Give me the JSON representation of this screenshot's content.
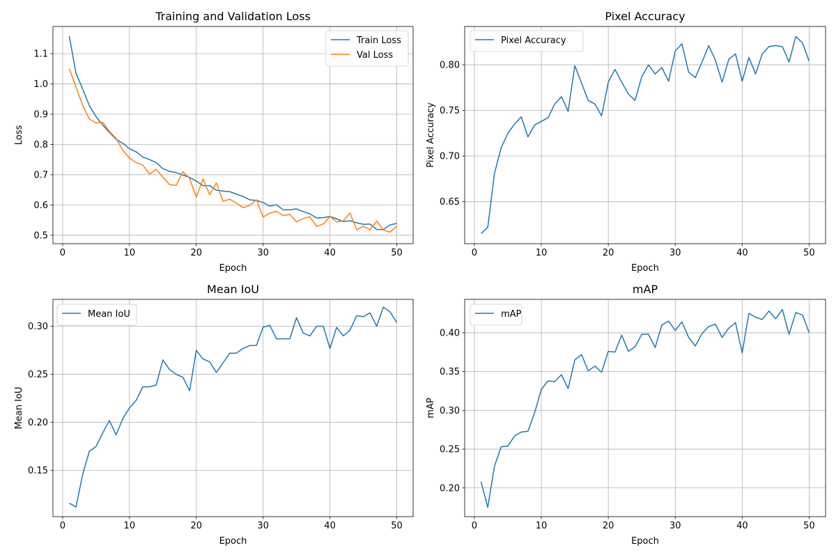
{
  "colors": {
    "train_loss": "#1f77b4",
    "val_loss": "#ff7f0e",
    "metric": "#1f77b4",
    "grid": "#b0b0b0",
    "axis": "#000000"
  },
  "chart_data": [
    {
      "type": "line",
      "title": "Training and Validation Loss",
      "xlabel": "Epoch",
      "ylabel": "Loss",
      "xlim": [
        -1.45,
        52.45
      ],
      "ylim": [
        0.472,
        1.19
      ],
      "xticks": [
        0,
        10,
        20,
        30,
        40,
        50
      ],
      "yticks": [
        0.5,
        0.6,
        0.7,
        0.8,
        0.9,
        1.0,
        1.1
      ],
      "ytick_labels": [
        "0.5",
        "0.6",
        "0.7",
        "0.8",
        "0.9",
        "1.0",
        "1.1"
      ],
      "grid": true,
      "legend": "top-right",
      "x": [
        1,
        2,
        3,
        4,
        5,
        6,
        7,
        8,
        9,
        10,
        11,
        12,
        13,
        14,
        15,
        16,
        17,
        18,
        19,
        20,
        21,
        22,
        23,
        24,
        25,
        26,
        27,
        28,
        29,
        30,
        31,
        32,
        33,
        34,
        35,
        36,
        37,
        38,
        39,
        40,
        41,
        42,
        43,
        44,
        45,
        46,
        47,
        48,
        49,
        50
      ],
      "series": [
        {
          "name": "Train Loss",
          "values": [
            1.158,
            1.035,
            0.983,
            0.928,
            0.892,
            0.864,
            0.84,
            0.817,
            0.804,
            0.786,
            0.776,
            0.758,
            0.75,
            0.74,
            0.72,
            0.711,
            0.707,
            0.699,
            0.691,
            0.679,
            0.664,
            0.664,
            0.649,
            0.646,
            0.644,
            0.636,
            0.628,
            0.617,
            0.615,
            0.608,
            0.596,
            0.601,
            0.584,
            0.584,
            0.587,
            0.578,
            0.571,
            0.557,
            0.558,
            0.562,
            0.554,
            0.545,
            0.548,
            0.541,
            0.536,
            0.537,
            0.519,
            0.519,
            0.534,
            0.539
          ]
        },
        {
          "name": "Val Loss",
          "values": [
            1.05,
            0.99,
            0.929,
            0.884,
            0.871,
            0.873,
            0.843,
            0.82,
            0.781,
            0.755,
            0.74,
            0.732,
            0.702,
            0.718,
            0.692,
            0.667,
            0.665,
            0.71,
            0.688,
            0.626,
            0.686,
            0.634,
            0.673,
            0.612,
            0.619,
            0.606,
            0.591,
            0.599,
            0.617,
            0.56,
            0.573,
            0.579,
            0.565,
            0.569,
            0.544,
            0.555,
            0.561,
            0.529,
            0.537,
            0.562,
            0.544,
            0.547,
            0.574,
            0.518,
            0.53,
            0.518,
            0.547,
            0.517,
            0.51,
            0.53
          ]
        }
      ]
    },
    {
      "type": "line",
      "title": "Pixel Accuracy",
      "xlabel": "Epoch",
      "ylabel": "Pixel Accuracy",
      "xlim": [
        -1.45,
        52.45
      ],
      "ylim": [
        0.604,
        0.842
      ],
      "xticks": [
        0,
        10,
        20,
        30,
        40,
        50
      ],
      "yticks": [
        0.65,
        0.7,
        0.75,
        0.8
      ],
      "ytick_labels": [
        "0.65",
        "0.70",
        "0.75",
        "0.80"
      ],
      "grid": true,
      "legend": "top-left",
      "x": [
        1,
        2,
        3,
        4,
        5,
        6,
        7,
        8,
        9,
        10,
        11,
        12,
        13,
        14,
        15,
        16,
        17,
        18,
        19,
        20,
        21,
        22,
        23,
        24,
        25,
        26,
        27,
        28,
        29,
        30,
        31,
        32,
        33,
        34,
        35,
        36,
        37,
        38,
        39,
        40,
        41,
        42,
        43,
        44,
        45,
        46,
        47,
        48,
        49,
        50
      ],
      "series": [
        {
          "name": "Pixel Accuracy",
          "values": [
            0.615,
            0.622,
            0.681,
            0.709,
            0.725,
            0.735,
            0.743,
            0.721,
            0.734,
            0.738,
            0.742,
            0.757,
            0.765,
            0.749,
            0.799,
            0.78,
            0.761,
            0.757,
            0.744,
            0.781,
            0.795,
            0.781,
            0.768,
            0.761,
            0.787,
            0.8,
            0.79,
            0.797,
            0.782,
            0.815,
            0.823,
            0.792,
            0.786,
            0.803,
            0.821,
            0.805,
            0.781,
            0.806,
            0.812,
            0.782,
            0.808,
            0.79,
            0.812,
            0.82,
            0.821,
            0.82,
            0.803,
            0.831,
            0.824,
            0.804
          ]
        }
      ]
    },
    {
      "type": "line",
      "title": "Mean IoU",
      "xlabel": "Epoch",
      "ylabel": "Mean IoU",
      "xlim": [
        -1.45,
        52.45
      ],
      "ylim": [
        0.102,
        0.328
      ],
      "xticks": [
        0,
        10,
        20,
        30,
        40,
        50
      ],
      "yticks": [
        0.15,
        0.2,
        0.25,
        0.3
      ],
      "ytick_labels": [
        "0.15",
        "0.20",
        "0.25",
        "0.30"
      ],
      "grid": true,
      "legend": "top-left",
      "x": [
        1,
        2,
        3,
        4,
        5,
        6,
        7,
        8,
        9,
        10,
        11,
        12,
        13,
        14,
        15,
        16,
        17,
        18,
        19,
        20,
        21,
        22,
        23,
        24,
        25,
        26,
        27,
        28,
        29,
        30,
        31,
        32,
        33,
        34,
        35,
        36,
        37,
        38,
        39,
        40,
        41,
        42,
        43,
        44,
        45,
        46,
        47,
        48,
        49,
        50
      ],
      "series": [
        {
          "name": "Mean IoU",
          "values": [
            0.116,
            0.112,
            0.146,
            0.17,
            0.175,
            0.189,
            0.202,
            0.187,
            0.204,
            0.215,
            0.223,
            0.237,
            0.237,
            0.239,
            0.265,
            0.255,
            0.25,
            0.247,
            0.233,
            0.275,
            0.266,
            0.263,
            0.252,
            0.262,
            0.272,
            0.272,
            0.277,
            0.28,
            0.28,
            0.299,
            0.301,
            0.287,
            0.287,
            0.287,
            0.309,
            0.293,
            0.29,
            0.3,
            0.3,
            0.277,
            0.299,
            0.29,
            0.296,
            0.311,
            0.31,
            0.314,
            0.3,
            0.32,
            0.315,
            0.304
          ]
        }
      ]
    },
    {
      "type": "line",
      "title": "mAP",
      "xlabel": "Epoch",
      "ylabel": "mAP",
      "xlim": [
        -1.45,
        52.45
      ],
      "ylim": [
        0.163,
        0.443
      ],
      "xticks": [
        0,
        10,
        20,
        30,
        40,
        50
      ],
      "yticks": [
        0.2,
        0.25,
        0.3,
        0.35,
        0.4
      ],
      "ytick_labels": [
        "0.20",
        "0.25",
        "0.30",
        "0.35",
        "0.40"
      ],
      "grid": true,
      "legend": "top-left",
      "x": [
        1,
        2,
        3,
        4,
        5,
        6,
        7,
        8,
        9,
        10,
        11,
        12,
        13,
        14,
        15,
        16,
        17,
        18,
        19,
        20,
        21,
        22,
        23,
        24,
        25,
        26,
        27,
        28,
        29,
        30,
        31,
        32,
        33,
        34,
        35,
        36,
        37,
        38,
        39,
        40,
        41,
        42,
        43,
        44,
        45,
        46,
        47,
        48,
        49,
        50
      ],
      "series": [
        {
          "name": "mAP",
          "values": [
            0.208,
            0.175,
            0.228,
            0.253,
            0.254,
            0.267,
            0.272,
            0.273,
            0.297,
            0.327,
            0.338,
            0.337,
            0.346,
            0.328,
            0.365,
            0.372,
            0.351,
            0.357,
            0.349,
            0.376,
            0.375,
            0.397,
            0.376,
            0.382,
            0.398,
            0.398,
            0.381,
            0.41,
            0.415,
            0.403,
            0.414,
            0.394,
            0.383,
            0.399,
            0.408,
            0.411,
            0.394,
            0.406,
            0.413,
            0.374,
            0.425,
            0.42,
            0.417,
            0.428,
            0.418,
            0.43,
            0.398,
            0.426,
            0.423,
            0.4
          ]
        }
      ]
    }
  ]
}
